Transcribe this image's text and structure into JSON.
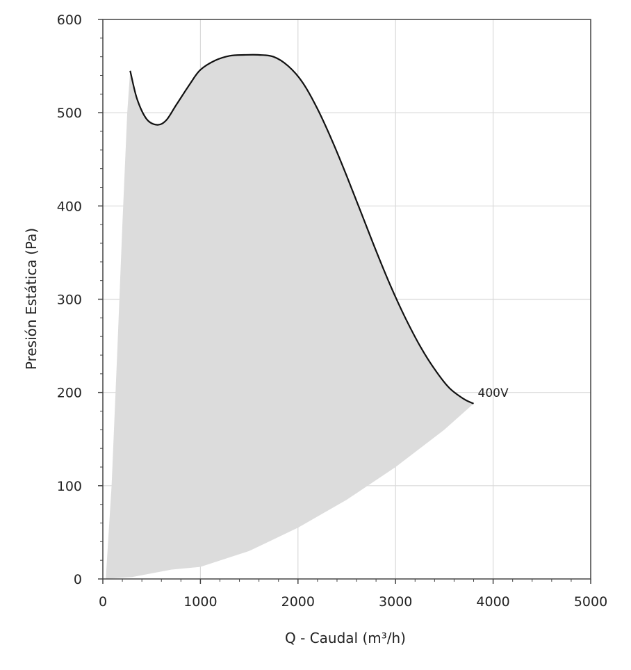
{
  "chart_data": {
    "type": "area",
    "xlabel": "Q - Caudal (m³/h)",
    "ylabel": "Presión Estática (Pa)",
    "xlim": [
      0,
      5000
    ],
    "ylim": [
      0,
      600
    ],
    "x_ticks": [
      0,
      1000,
      2000,
      3000,
      4000,
      5000
    ],
    "y_ticks": [
      0,
      100,
      200,
      300,
      400,
      500,
      600
    ],
    "x_tick_labels": [
      "0",
      "1000",
      "2000",
      "3000",
      "4000",
      "5000"
    ],
    "y_tick_labels": [
      "0",
      "100",
      "200",
      "300",
      "400",
      "500",
      "600"
    ],
    "grid": true,
    "colors": {
      "fill": "#dcdcdc",
      "curve": "#111111",
      "grid": "#d9d9d9",
      "axis": "#444444"
    },
    "series": [
      {
        "name": "400V",
        "x": [
          280,
          350,
          450,
          560,
          650,
          750,
          900,
          1000,
          1150,
          1300,
          1450,
          1600,
          1750,
          1900,
          2050,
          2200,
          2350,
          2500,
          2650,
          2800,
          2950,
          3100,
          3250,
          3400,
          3550,
          3700,
          3800
        ],
        "y": [
          545,
          515,
          493,
          487,
          492,
          508,
          532,
          546,
          556,
          561,
          562,
          562,
          560,
          550,
          532,
          504,
          470,
          432,
          392,
          352,
          314,
          280,
          250,
          225,
          205,
          193,
          188
        ]
      }
    ],
    "operating_area_lower_boundary": {
      "x": [
        0,
        300,
        700,
        1000,
        1500,
        2000,
        2500,
        3000,
        3500,
        3800
      ],
      "y": [
        0,
        2,
        10,
        13,
        30,
        55,
        85,
        120,
        160,
        188
      ]
    },
    "operating_area_left_boundary": {
      "x": [
        30,
        90,
        150,
        200,
        250,
        280
      ],
      "y": [
        0,
        100,
        250,
        380,
        500,
        545
      ]
    }
  }
}
